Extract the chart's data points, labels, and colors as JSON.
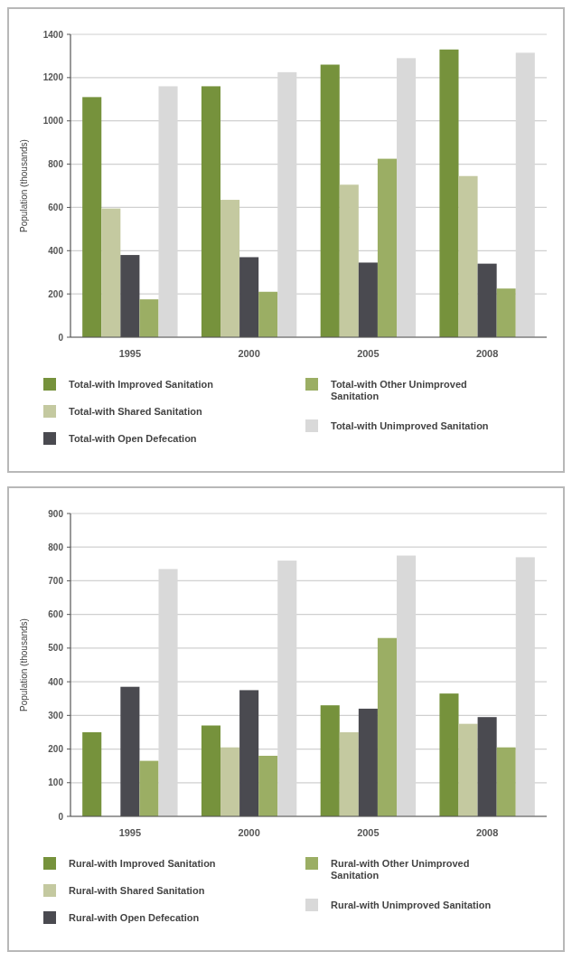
{
  "chart_data": [
    {
      "type": "bar",
      "categories": [
        "1995",
        "2000",
        "2005",
        "2008"
      ],
      "ylabel": "Population (thousands)",
      "ylim": [
        0,
        1400
      ],
      "yticks": [
        0,
        200,
        400,
        600,
        800,
        1000,
        1200,
        1400
      ],
      "grid": "y",
      "legend": "bottom",
      "series": [
        {
          "name": "Total-with Improved Sanitation",
          "color": "#76923c",
          "values": [
            1110,
            1160,
            1260,
            1330
          ]
        },
        {
          "name": "Total-with Shared Sanitation",
          "color": "#c4c9a0",
          "values": [
            595,
            635,
            705,
            745
          ]
        },
        {
          "name": "Total-with Open Defecation",
          "color": "#4a4a50",
          "values": [
            380,
            370,
            345,
            340
          ]
        },
        {
          "name": "Total-with Other Unimproved Sanitation",
          "color": "#9bae64",
          "values": [
            175,
            210,
            825,
            225
          ]
        },
        {
          "name": "Total-with Unimproved Sanitation",
          "color": "#d9d9d9",
          "values": [
            1160,
            1225,
            1290,
            1315
          ]
        }
      ]
    },
    {
      "type": "bar",
      "categories": [
        "1995",
        "2000",
        "2005",
        "2008"
      ],
      "ylabel": "Population (thousands)",
      "ylim": [
        0,
        900
      ],
      "yticks": [
        0,
        100,
        200,
        300,
        400,
        500,
        600,
        700,
        800,
        900
      ],
      "grid": "y",
      "legend": "bottom",
      "series": [
        {
          "name": "Rural-with Improved Sanitation",
          "color": "#76923c",
          "values": [
            250,
            270,
            330,
            365
          ]
        },
        {
          "name": "Rural-with Shared Sanitation",
          "color": "#c4c9a0",
          "values": [
            null,
            205,
            250,
            275
          ]
        },
        {
          "name": "Rural-with Open Defecation",
          "color": "#4a4a50",
          "values": [
            385,
            375,
            320,
            295
          ]
        },
        {
          "name": "Rural-with Other Unimproved Sanitation",
          "color": "#9bae64",
          "values": [
            165,
            180,
            530,
            205
          ]
        },
        {
          "name": "Rural-with Unimproved Sanitation",
          "color": "#d9d9d9",
          "values": [
            735,
            760,
            775,
            770
          ]
        }
      ]
    }
  ]
}
